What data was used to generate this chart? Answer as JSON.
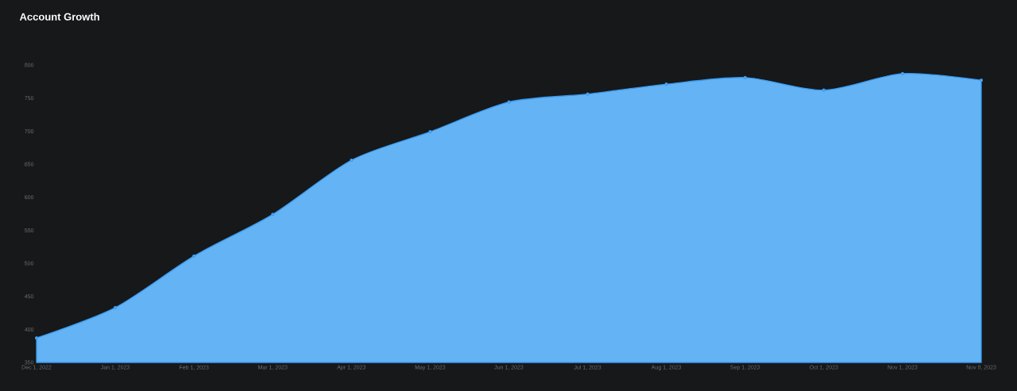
{
  "chart_data": {
    "type": "area",
    "title": "Account Growth",
    "categories": [
      "Dec 1, 2022",
      "Jan 1, 2023",
      "Feb 1, 2023",
      "Mar 1, 2023",
      "Apr 1, 2023",
      "May 1, 2023",
      "Jun 1, 2023",
      "Jul 1, 2023",
      "Aug 1, 2023",
      "Sep 1, 2023",
      "Oct 1, 2023",
      "Nov 1, 2023",
      "Nov 8, 2023"
    ],
    "values": [
      387,
      433,
      511,
      574,
      656,
      699,
      744,
      756,
      771,
      781,
      762,
      787,
      777
    ],
    "color": "#63b3f5",
    "ylim": [
      350,
      800
    ],
    "yticks": [
      350,
      400,
      450,
      500,
      550,
      600,
      650,
      700,
      750,
      800
    ],
    "grid": false,
    "marker": "circle",
    "line_style": "solid"
  }
}
